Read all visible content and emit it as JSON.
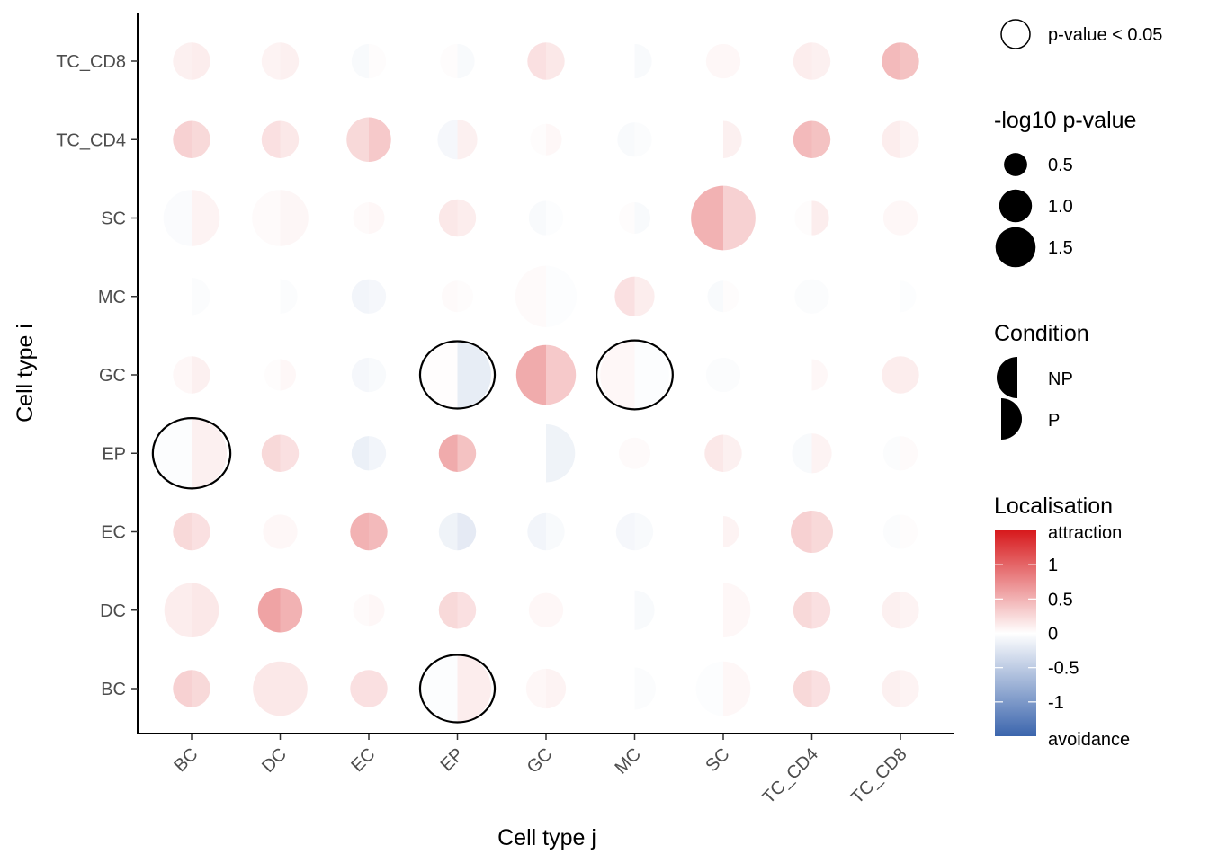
{
  "chart_data": {
    "type": "split-bubble-matrix",
    "xlabel": "Cell type j",
    "ylabel": "Cell type i",
    "categories_x": [
      "BC",
      "DC",
      "EC",
      "EP",
      "GC",
      "MC",
      "SC",
      "TC_CD4",
      "TC_CD8"
    ],
    "categories_y": [
      "BC",
      "DC",
      "EC",
      "EP",
      "GC",
      "MC",
      "SC",
      "TC_CD4",
      "TC_CD8"
    ],
    "conditions": [
      "NP",
      "P"
    ],
    "cells": [
      {
        "i": "TC_CD8",
        "j": "BC",
        "np": {
          "logp": 0.35,
          "loc": 0.1
        },
        "p": {
          "logp": 0.35,
          "loc": 0.12
        }
      },
      {
        "i": "TC_CD8",
        "j": "DC",
        "np": {
          "logp": 0.35,
          "loc": 0.08
        },
        "p": {
          "logp": 0.35,
          "loc": 0.1
        }
      },
      {
        "i": "TC_CD8",
        "j": "EC",
        "np": {
          "logp": 0.3,
          "loc": -0.05
        },
        "p": {
          "logp": 0.3,
          "loc": 0.02
        }
      },
      {
        "i": "TC_CD8",
        "j": "EP",
        "np": {
          "logp": 0.3,
          "loc": 0.02
        },
        "p": {
          "logp": 0.3,
          "loc": -0.05
        }
      },
      {
        "i": "TC_CD8",
        "j": "GC",
        "np": {
          "logp": 0.35,
          "loc": 0.2
        },
        "p": {
          "logp": 0.35,
          "loc": 0.15
        }
      },
      {
        "i": "TC_CD8",
        "j": "MC",
        "np": {
          "logp": 0.0,
          "loc": 0.0
        },
        "p": {
          "logp": 0.3,
          "loc": -0.05
        }
      },
      {
        "i": "TC_CD8",
        "j": "SC",
        "np": {
          "logp": 0.3,
          "loc": 0.05
        },
        "p": {
          "logp": 0.3,
          "loc": 0.05
        }
      },
      {
        "i": "TC_CD8",
        "j": "TC_CD4",
        "np": {
          "logp": 0.35,
          "loc": 0.12
        },
        "p": {
          "logp": 0.35,
          "loc": 0.1
        }
      },
      {
        "i": "TC_CD8",
        "j": "TC_CD8",
        "np": {
          "logp": 0.35,
          "loc": 0.45
        },
        "p": {
          "logp": 0.35,
          "loc": 0.4
        }
      },
      {
        "i": "TC_CD4",
        "j": "BC",
        "np": {
          "logp": 0.35,
          "loc": 0.3
        },
        "p": {
          "logp": 0.35,
          "loc": 0.25
        }
      },
      {
        "i": "TC_CD4",
        "j": "DC",
        "np": {
          "logp": 0.35,
          "loc": 0.2
        },
        "p": {
          "logp": 0.35,
          "loc": 0.15
        }
      },
      {
        "i": "TC_CD4",
        "j": "EC",
        "np": {
          "logp": 0.5,
          "loc": 0.25
        },
        "p": {
          "logp": 0.5,
          "loc": 0.35
        }
      },
      {
        "i": "TC_CD4",
        "j": "EP",
        "np": {
          "logp": 0.4,
          "loc": -0.08
        },
        "p": {
          "logp": 0.4,
          "loc": 0.1
        }
      },
      {
        "i": "TC_CD4",
        "j": "GC",
        "np": {
          "logp": 0.25,
          "loc": 0.02
        },
        "p": {
          "logp": 0.25,
          "loc": 0.05
        }
      },
      {
        "i": "TC_CD4",
        "j": "MC",
        "np": {
          "logp": 0.3,
          "loc": -0.05
        },
        "p": {
          "logp": 0.3,
          "loc": -0.03
        }
      },
      {
        "i": "TC_CD4",
        "j": "SC",
        "np": {
          "logp": 0.0,
          "loc": 0.0
        },
        "p": {
          "logp": 0.35,
          "loc": 0.1
        }
      },
      {
        "i": "TC_CD4",
        "j": "TC_CD4",
        "np": {
          "logp": 0.35,
          "loc": 0.45
        },
        "p": {
          "logp": 0.35,
          "loc": 0.4
        }
      },
      {
        "i": "TC_CD4",
        "j": "TC_CD8",
        "np": {
          "logp": 0.35,
          "loc": 0.12
        },
        "p": {
          "logp": 0.35,
          "loc": 0.08
        }
      },
      {
        "i": "SC",
        "j": "BC",
        "np": {
          "logp": 0.8,
          "loc": -0.04
        },
        "p": {
          "logp": 0.8,
          "loc": 0.08
        }
      },
      {
        "i": "SC",
        "j": "DC",
        "np": {
          "logp": 0.8,
          "loc": 0.03
        },
        "p": {
          "logp": 0.8,
          "loc": 0.06
        }
      },
      {
        "i": "SC",
        "j": "EC",
        "np": {
          "logp": 0.25,
          "loc": 0.03
        },
        "p": {
          "logp": 0.25,
          "loc": 0.05
        }
      },
      {
        "i": "SC",
        "j": "EP",
        "np": {
          "logp": 0.35,
          "loc": 0.15
        },
        "p": {
          "logp": 0.35,
          "loc": 0.12
        }
      },
      {
        "i": "SC",
        "j": "GC",
        "np": {
          "logp": 0.3,
          "loc": -0.05
        },
        "p": {
          "logp": 0.3,
          "loc": -0.02
        }
      },
      {
        "i": "SC",
        "j": "MC",
        "np": {
          "logp": 0.25,
          "loc": 0.02
        },
        "p": {
          "logp": 0.25,
          "loc": -0.05
        }
      },
      {
        "i": "SC",
        "j": "SC",
        "np": {
          "logp": 1.05,
          "loc": 0.5
        },
        "p": {
          "logp": 1.05,
          "loc": 0.3
        }
      },
      {
        "i": "SC",
        "j": "TC_CD4",
        "np": {
          "logp": 0.3,
          "loc": 0.02
        },
        "p": {
          "logp": 0.3,
          "loc": 0.12
        }
      },
      {
        "i": "SC",
        "j": "TC_CD8",
        "np": {
          "logp": 0.3,
          "loc": 0.05
        },
        "p": {
          "logp": 0.3,
          "loc": 0.05
        }
      },
      {
        "i": "MC",
        "j": "BC",
        "np": {
          "logp": 0.0,
          "loc": 0.0
        },
        "p": {
          "logp": 0.35,
          "loc": -0.03
        }
      },
      {
        "i": "MC",
        "j": "DC",
        "np": {
          "logp": 0.0,
          "loc": 0.0
        },
        "p": {
          "logp": 0.3,
          "loc": -0.03
        }
      },
      {
        "i": "MC",
        "j": "EC",
        "np": {
          "logp": 0.3,
          "loc": -0.1
        },
        "p": {
          "logp": 0.3,
          "loc": -0.08
        }
      },
      {
        "i": "MC",
        "j": "EP",
        "np": {
          "logp": 0.25,
          "loc": 0.03
        },
        "p": {
          "logp": 0.25,
          "loc": 0.02
        }
      },
      {
        "i": "MC",
        "j": "GC",
        "np": {
          "logp": 0.95,
          "loc": 0.03
        },
        "p": {
          "logp": 0.95,
          "loc": -0.02
        }
      },
      {
        "i": "MC",
        "j": "MC",
        "np": {
          "logp": 0.4,
          "loc": 0.2
        },
        "p": {
          "logp": 0.4,
          "loc": 0.12
        }
      },
      {
        "i": "MC",
        "j": "SC",
        "np": {
          "logp": 0.25,
          "loc": -0.05
        },
        "p": {
          "logp": 0.25,
          "loc": 0.02
        }
      },
      {
        "i": "MC",
        "j": "TC_CD4",
        "np": {
          "logp": 0.3,
          "loc": -0.03
        },
        "p": {
          "logp": 0.3,
          "loc": -0.03
        }
      },
      {
        "i": "MC",
        "j": "TC_CD8",
        "np": {
          "logp": 0.0,
          "loc": 0.0
        },
        "p": {
          "logp": 0.25,
          "loc": -0.02
        }
      },
      {
        "i": "GC",
        "j": "BC",
        "np": {
          "logp": 0.35,
          "loc": 0.05
        },
        "p": {
          "logp": 0.35,
          "loc": 0.1
        }
      },
      {
        "i": "GC",
        "j": "DC",
        "np": {
          "logp": 0.25,
          "loc": 0.02
        },
        "p": {
          "logp": 0.25,
          "loc": 0.05
        }
      },
      {
        "i": "GC",
        "j": "EC",
        "np": {
          "logp": 0.3,
          "loc": -0.08
        },
        "p": {
          "logp": 0.3,
          "loc": -0.05
        }
      },
      {
        "i": "GC",
        "j": "EP",
        "np": {
          "logp": 1.15,
          "loc": 0.01
        },
        "p": {
          "logp": 1.15,
          "loc": -0.18
        },
        "sig": true
      },
      {
        "i": "GC",
        "j": "GC",
        "np": {
          "logp": 0.9,
          "loc": 0.55
        },
        "p": {
          "logp": 0.9,
          "loc": 0.35
        }
      },
      {
        "i": "GC",
        "j": "MC",
        "np": {
          "logp": 1.2,
          "loc": 0.05
        },
        "p": {
          "logp": 1.2,
          "loc": -0.02
        },
        "sig": true
      },
      {
        "i": "GC",
        "j": "SC",
        "np": {
          "logp": 0.3,
          "loc": -0.03
        },
        "p": {
          "logp": 0.3,
          "loc": -0.03
        }
      },
      {
        "i": "GC",
        "j": "TC_CD4",
        "np": {
          "logp": 0.0,
          "loc": 0.0
        },
        "p": {
          "logp": 0.25,
          "loc": 0.05
        }
      },
      {
        "i": "GC",
        "j": "TC_CD8",
        "np": {
          "logp": 0.35,
          "loc": 0.12
        },
        "p": {
          "logp": 0.35,
          "loc": 0.12
        }
      },
      {
        "i": "EP",
        "j": "BC",
        "np": {
          "logp": 1.25,
          "loc": -0.02
        },
        "p": {
          "logp": 1.25,
          "loc": 0.1
        },
        "sig": true
      },
      {
        "i": "EP",
        "j": "DC",
        "np": {
          "logp": 0.35,
          "loc": 0.25
        },
        "p": {
          "logp": 0.35,
          "loc": 0.2
        }
      },
      {
        "i": "EP",
        "j": "EC",
        "np": {
          "logp": 0.3,
          "loc": -0.15
        },
        "p": {
          "logp": 0.3,
          "loc": -0.1
        }
      },
      {
        "i": "EP",
        "j": "EP",
        "np": {
          "logp": 0.35,
          "loc": 0.55
        },
        "p": {
          "logp": 0.35,
          "loc": 0.4
        }
      },
      {
        "i": "EP",
        "j": "GC",
        "np": {
          "logp": 0.0,
          "loc": 0.0
        },
        "p": {
          "logp": 0.85,
          "loc": -0.12
        }
      },
      {
        "i": "EP",
        "j": "MC",
        "np": {
          "logp": 0.25,
          "loc": 0.03
        },
        "p": {
          "logp": 0.25,
          "loc": 0.03
        }
      },
      {
        "i": "EP",
        "j": "SC",
        "np": {
          "logp": 0.35,
          "loc": 0.15
        },
        "p": {
          "logp": 0.35,
          "loc": 0.1
        }
      },
      {
        "i": "EP",
        "j": "TC_CD4",
        "np": {
          "logp": 0.4,
          "loc": -0.05
        },
        "p": {
          "logp": 0.4,
          "loc": 0.08
        }
      },
      {
        "i": "EP",
        "j": "TC_CD8",
        "np": {
          "logp": 0.3,
          "loc": -0.03
        },
        "p": {
          "logp": 0.3,
          "loc": 0.03
        }
      },
      {
        "i": "EC",
        "j": "BC",
        "np": {
          "logp": 0.35,
          "loc": 0.25
        },
        "p": {
          "logp": 0.35,
          "loc": 0.2
        }
      },
      {
        "i": "EC",
        "j": "DC",
        "np": {
          "logp": 0.3,
          "loc": 0.05
        },
        "p": {
          "logp": 0.3,
          "loc": 0.05
        }
      },
      {
        "i": "EC",
        "j": "EC",
        "np": {
          "logp": 0.35,
          "loc": 0.5
        },
        "p": {
          "logp": 0.35,
          "loc": 0.45
        }
      },
      {
        "i": "EC",
        "j": "EP",
        "np": {
          "logp": 0.35,
          "loc": -0.12
        },
        "p": {
          "logp": 0.35,
          "loc": -0.2
        }
      },
      {
        "i": "EC",
        "j": "GC",
        "np": {
          "logp": 0.35,
          "loc": -0.1
        },
        "p": {
          "logp": 0.35,
          "loc": -0.05
        }
      },
      {
        "i": "EC",
        "j": "MC",
        "np": {
          "logp": 0.35,
          "loc": -0.08
        },
        "p": {
          "logp": 0.35,
          "loc": -0.05
        }
      },
      {
        "i": "EC",
        "j": "SC",
        "np": {
          "logp": 0.0,
          "loc": 0.0
        },
        "p": {
          "logp": 0.25,
          "loc": 0.08
        }
      },
      {
        "i": "EC",
        "j": "TC_CD4",
        "np": {
          "logp": 0.45,
          "loc": 0.3
        },
        "p": {
          "logp": 0.45,
          "loc": 0.25
        }
      },
      {
        "i": "EC",
        "j": "TC_CD8",
        "np": {
          "logp": 0.3,
          "loc": -0.03
        },
        "p": {
          "logp": 0.3,
          "loc": 0.02
        }
      },
      {
        "i": "DC",
        "j": "BC",
        "np": {
          "logp": 0.75,
          "loc": 0.12
        },
        "p": {
          "logp": 0.75,
          "loc": 0.15
        }
      },
      {
        "i": "DC",
        "j": "DC",
        "np": {
          "logp": 0.5,
          "loc": 0.6
        },
        "p": {
          "logp": 0.5,
          "loc": 0.5
        }
      },
      {
        "i": "DC",
        "j": "EC",
        "np": {
          "logp": 0.25,
          "loc": 0.03
        },
        "p": {
          "logp": 0.25,
          "loc": 0.05
        }
      },
      {
        "i": "DC",
        "j": "EP",
        "np": {
          "logp": 0.35,
          "loc": 0.25
        },
        "p": {
          "logp": 0.35,
          "loc": 0.2
        }
      },
      {
        "i": "DC",
        "j": "GC",
        "np": {
          "logp": 0.3,
          "loc": 0.05
        },
        "p": {
          "logp": 0.3,
          "loc": 0.05
        }
      },
      {
        "i": "DC",
        "j": "MC",
        "np": {
          "logp": 0.0,
          "loc": 0.0
        },
        "p": {
          "logp": 0.4,
          "loc": -0.05
        }
      },
      {
        "i": "DC",
        "j": "SC",
        "np": {
          "logp": 0.0,
          "loc": 0.0
        },
        "p": {
          "logp": 0.75,
          "loc": 0.05
        }
      },
      {
        "i": "DC",
        "j": "TC_CD4",
        "np": {
          "logp": 0.35,
          "loc": 0.25
        },
        "p": {
          "logp": 0.35,
          "loc": 0.2
        }
      },
      {
        "i": "DC",
        "j": "TC_CD8",
        "np": {
          "logp": 0.35,
          "loc": 0.1
        },
        "p": {
          "logp": 0.35,
          "loc": 0.08
        }
      },
      {
        "i": "BC",
        "j": "BC",
        "np": {
          "logp": 0.35,
          "loc": 0.3
        },
        "p": {
          "logp": 0.35,
          "loc": 0.25
        }
      },
      {
        "i": "BC",
        "j": "DC",
        "np": {
          "logp": 0.75,
          "loc": 0.15
        },
        "p": {
          "logp": 0.75,
          "loc": 0.15
        }
      },
      {
        "i": "BC",
        "j": "EC",
        "np": {
          "logp": 0.35,
          "loc": 0.2
        },
        "p": {
          "logp": 0.35,
          "loc": 0.2
        }
      },
      {
        "i": "BC",
        "j": "EP",
        "np": {
          "logp": 1.15,
          "loc": -0.02
        },
        "p": {
          "logp": 1.15,
          "loc": 0.12
        },
        "sig": true
      },
      {
        "i": "BC",
        "j": "GC",
        "np": {
          "logp": 0.4,
          "loc": 0.05
        },
        "p": {
          "logp": 0.4,
          "loc": 0.08
        }
      },
      {
        "i": "BC",
        "j": "MC",
        "np": {
          "logp": 0.0,
          "loc": 0.0
        },
        "p": {
          "logp": 0.45,
          "loc": -0.03
        }
      },
      {
        "i": "BC",
        "j": "SC",
        "np": {
          "logp": 0.75,
          "loc": -0.02
        },
        "p": {
          "logp": 0.75,
          "loc": 0.05
        }
      },
      {
        "i": "BC",
        "j": "TC_CD4",
        "np": {
          "logp": 0.35,
          "loc": 0.25
        },
        "p": {
          "logp": 0.35,
          "loc": 0.2
        }
      },
      {
        "i": "BC",
        "j": "TC_CD8",
        "np": {
          "logp": 0.35,
          "loc": 0.1
        },
        "p": {
          "logp": 0.35,
          "loc": 0.08
        }
      }
    ],
    "legend": {
      "sig_label": "p-value < 0.05",
      "size_title": "-log10 p-value",
      "size_values": [
        0.5,
        1.0,
        1.5
      ],
      "size_labels": [
        "0.5",
        "1.0",
        "1.5"
      ],
      "condition_title": "Condition",
      "condition_labels": [
        "NP",
        "P"
      ],
      "color_title": "Localisation",
      "color_high_label": "attraction",
      "color_low_label": "avoidance",
      "color_ticks": [
        1,
        0.5,
        0,
        -0.5,
        -1
      ],
      "color_tick_labels": [
        "1",
        "0.5",
        "0",
        "-0.5",
        "-1"
      ],
      "color_range": [
        -1.5,
        1.5
      ],
      "colors": {
        "low": "#3b65ad",
        "mid": "#ffffff",
        "high": "#d7191c"
      }
    }
  }
}
